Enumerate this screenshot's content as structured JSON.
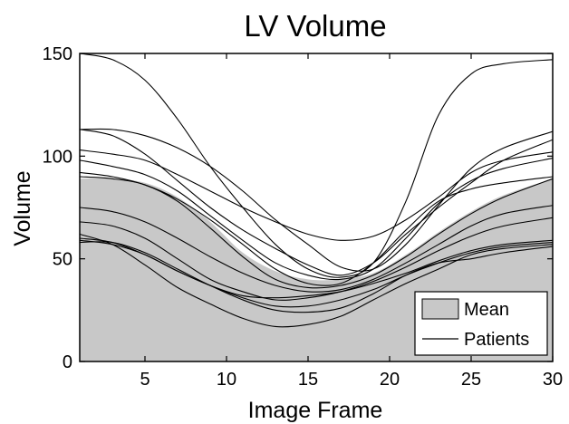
{
  "chart_data": {
    "type": "area",
    "title": "LV Volume",
    "xlabel": "Image Frame",
    "ylabel": "Volume",
    "xlim": [
      1,
      30
    ],
    "ylim": [
      0,
      150
    ],
    "xticks": [
      5,
      10,
      15,
      20,
      25,
      30
    ],
    "yticks": [
      0,
      50,
      100,
      150
    ],
    "grid": false,
    "legend_position": "bottom-right",
    "legend": [
      "Mean",
      "Patients"
    ],
    "x": [
      1,
      3,
      5,
      7,
      9,
      11,
      13,
      15,
      17,
      19,
      21,
      23,
      25,
      27,
      30
    ],
    "mean": {
      "name": "Mean",
      "color": "#c8c8c8",
      "values": [
        89,
        89,
        87,
        80,
        68,
        53,
        44,
        40,
        40,
        43,
        52,
        63,
        73,
        81,
        89
      ]
    },
    "patients_color": "#000000",
    "series": [
      {
        "name": "Patients",
        "values": [
          150,
          147,
          137,
          118,
          95,
          75,
          57,
          45,
          41,
          48,
          78,
          120,
          140,
          145,
          147
        ]
      },
      {
        "name": "Patients",
        "values": [
          113,
          113,
          110,
          104,
          95,
          83,
          69,
          57,
          46,
          45,
          57,
          76,
          94,
          104,
          112
        ]
      },
      {
        "name": "Patients",
        "values": [
          113,
          110,
          101,
          88,
          75,
          64,
          55,
          47,
          42,
          48,
          62,
          75,
          87,
          98,
          108
        ]
      },
      {
        "name": "Patients",
        "values": [
          103,
          101,
          98,
          91,
          83,
          75,
          68,
          62,
          59,
          61,
          69,
          80,
          92,
          98,
          102
        ]
      },
      {
        "name": "Patients",
        "values": [
          98,
          95,
          91,
          83,
          71,
          59,
          48,
          42,
          40,
          45,
          60,
          77,
          88,
          94,
          99
        ]
      },
      {
        "name": "Patients",
        "values": [
          92,
          90,
          86,
          79,
          69,
          57,
          45,
          38,
          38,
          48,
          64,
          78,
          84,
          87,
          90
        ]
      },
      {
        "name": "Patients",
        "values": [
          90,
          89,
          86,
          78,
          65,
          51,
          40,
          36,
          37,
          42,
          51,
          62,
          72,
          80,
          89
        ]
      },
      {
        "name": "Patients",
        "values": [
          75,
          73,
          68,
          60,
          51,
          43,
          37,
          34,
          35,
          40,
          48,
          57,
          66,
          72,
          76
        ]
      },
      {
        "name": "Patients",
        "values": [
          68,
          66,
          60,
          50,
          40,
          34,
          30,
          31,
          34,
          39,
          46,
          54,
          61,
          66,
          70
        ]
      },
      {
        "name": "Patients",
        "values": [
          62,
          57,
          47,
          36,
          28,
          21,
          17,
          18,
          22,
          30,
          38,
          45,
          52,
          55,
          57
        ]
      },
      {
        "name": "Patients",
        "values": [
          59,
          57,
          52,
          44,
          37,
          31,
          27,
          27,
          30,
          35,
          42,
          48,
          53,
          56,
          58
        ]
      },
      {
        "name": "Patients",
        "values": [
          58,
          58,
          53,
          45,
          37,
          30,
          25,
          24,
          26,
          33,
          42,
          48,
          50,
          53,
          56
        ]
      },
      {
        "name": "Patients",
        "values": [
          60,
          58,
          52,
          44,
          37,
          32,
          31,
          32,
          34,
          38,
          43,
          49,
          54,
          57,
          59
        ]
      }
    ]
  }
}
